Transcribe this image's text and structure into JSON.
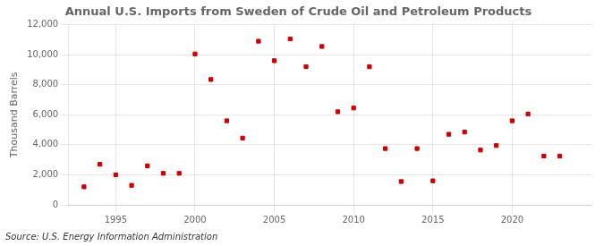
{
  "chart_data": {
    "type": "scatter",
    "title": "Annual U.S. Imports from Sweden of Crude Oil and Petroleum Products",
    "y_label": "Thousand Barrels",
    "annotations": [
      "Source: U.S. Energy Information Administration"
    ],
    "x": [
      1993,
      1994,
      1995,
      1996,
      1997,
      1998,
      1999,
      2000,
      2001,
      2002,
      2003,
      2004,
      2005,
      2006,
      2007,
      2008,
      2009,
      2010,
      2011,
      2012,
      2013,
      2014,
      2015,
      2016,
      2017,
      2018,
      2019,
      2020,
      2021,
      2022,
      2023
    ],
    "values": [
      1200,
      2700,
      2000,
      1300,
      2600,
      2100,
      2100,
      10050,
      8350,
      5600,
      4450,
      10900,
      9600,
      11050,
      9200,
      10550,
      6200,
      6450,
      9200,
      3750,
      1550,
      3750,
      1600,
      4700,
      4850,
      3650,
      3950,
      5600,
      6050,
      3250,
      3250
    ],
    "color": "#cc0000",
    "marker": "square",
    "xlim": [
      1992,
      2025
    ],
    "xticks": [
      1995,
      2000,
      2005,
      2010,
      2015,
      2020
    ],
    "ylim": [
      0,
      12000
    ],
    "yticks": [
      0,
      {
        "value": 2000,
        "label": "2,000"
      },
      {
        "value": 4000,
        "label": "4,000"
      },
      {
        "value": 6000,
        "label": "6,000"
      },
      {
        "value": 8000,
        "label": "8,000"
      },
      {
        "value": 10000,
        "label": "10,000"
      },
      {
        "value": 12000,
        "label": "12,000"
      }
    ],
    "grid": true
  }
}
